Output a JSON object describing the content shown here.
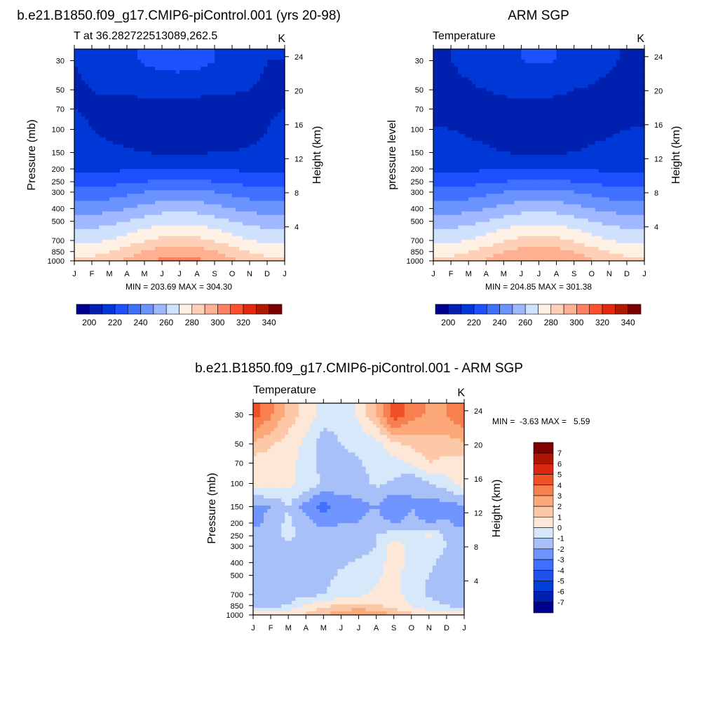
{
  "header": {
    "left_title": "b.e21.B1850.f09_g17.CMIP6-piControl.001 (yrs 20-98)",
    "right_title": "ARM SGP",
    "bottom_title": "b.e21.B1850.f09_g17.CMIP6-piControl.001 - ARM SGP"
  },
  "axes": {
    "months": [
      "J",
      "F",
      "M",
      "A",
      "M",
      "J",
      "J",
      "A",
      "S",
      "O",
      "N",
      "D",
      "J"
    ],
    "pressure_ticks": [
      "30",
      "50",
      "70",
      "100",
      "150",
      "200",
      "250",
      "300",
      "400",
      "500",
      "700",
      "850",
      "1000"
    ],
    "height_ticks": [
      "24",
      "20",
      "16",
      "12",
      "8",
      "4"
    ],
    "pressure_label": "Pressure (mb)",
    "pressure_label_alt": "pressure level",
    "height_label": "Height (km)"
  },
  "colors": {
    "temperature_scale": [
      "#00008f",
      "#0020b0",
      "#0038d8",
      "#1e50ff",
      "#4070ff",
      "#6b93ff",
      "#a0b8ff",
      "#d0e0ff",
      "#fff0e4",
      "#ffd0b8",
      "#ffb090",
      "#ff8060",
      "#ff5030",
      "#e02a10",
      "#b01800",
      "#800000"
    ],
    "diff_scale": [
      "#000090",
      "#0020b0",
      "#0040d8",
      "#2050f0",
      "#4070ff",
      "#7095ff",
      "#a8c0f8",
      "#d6e8fa",
      "#fde8d8",
      "#fcc8a8",
      "#fca878",
      "#f88050",
      "#f05028",
      "#d82810",
      "#b01404",
      "#800000"
    ]
  },
  "chart_data": [
    {
      "type": "heatmap",
      "title": "b.e21.B1850.f09_g17.CMIP6-piControl.001 (yrs 20-98)",
      "subtitle_left": "T at 36.282722513089,262.5",
      "subtitle_right": "K",
      "ylabel": "Pressure (mb)",
      "ylabel_right": "Height (km)",
      "stats": "MIN = 203.69 MAX = 304.30",
      "levels": [
        200,
        220,
        240,
        260,
        280,
        300,
        320,
        340
      ],
      "x": [
        "J",
        "F",
        "M",
        "A",
        "M",
        "J",
        "J",
        "A",
        "S",
        "O",
        "N",
        "D",
        "J"
      ],
      "y": [
        30,
        50,
        70,
        100,
        150,
        200,
        250,
        300,
        400,
        500,
        700,
        850,
        1000
      ],
      "values": [
        [
          210,
          212,
          214,
          218,
          221,
          223,
          224,
          223,
          220,
          216,
          212,
          210,
          210
        ],
        [
          209,
          210,
          211,
          212,
          213,
          214,
          214,
          213,
          212,
          211,
          210,
          209,
          209
        ],
        [
          210,
          209,
          208,
          206,
          205,
          205,
          205,
          205,
          205,
          206,
          208,
          209,
          210
        ],
        [
          212,
          210,
          208,
          206,
          205,
          204,
          204,
          204,
          205,
          206,
          207,
          210,
          212
        ],
        [
          214,
          213,
          212,
          211,
          210,
          209,
          209,
          209,
          210,
          210,
          211,
          212,
          214
        ],
        [
          218,
          218,
          218,
          219,
          220,
          221,
          221,
          221,
          220,
          219,
          218,
          218,
          218
        ],
        [
          226,
          226,
          227,
          228,
          230,
          232,
          233,
          232,
          230,
          228,
          227,
          226,
          226
        ],
        [
          234,
          234,
          235,
          237,
          240,
          242,
          243,
          242,
          240,
          237,
          235,
          234,
          234
        ],
        [
          245,
          245,
          247,
          250,
          253,
          256,
          257,
          256,
          253,
          250,
          247,
          245,
          245
        ],
        [
          254,
          255,
          257,
          260,
          264,
          267,
          268,
          267,
          264,
          260,
          257,
          255,
          254
        ],
        [
          267,
          268,
          270,
          274,
          279,
          283,
          284,
          283,
          279,
          274,
          270,
          268,
          267
        ],
        [
          276,
          277,
          280,
          285,
          291,
          295,
          297,
          295,
          291,
          285,
          280,
          277,
          276
        ],
        [
          282,
          283,
          286,
          292,
          298,
          302,
          304,
          302,
          298,
          292,
          286,
          283,
          282
        ]
      ]
    },
    {
      "type": "heatmap",
      "title": "ARM SGP",
      "subtitle_left": "Temperature",
      "subtitle_right": "K",
      "ylabel": "pressure level",
      "ylabel_right": "Height (km)",
      "stats": "MIN = 204.85 MAX = 301.38",
      "levels": [
        200,
        220,
        240,
        260,
        280,
        300,
        320,
        340
      ],
      "x": [
        "J",
        "F",
        "M",
        "A",
        "M",
        "J",
        "J",
        "A",
        "S",
        "O",
        "N",
        "D",
        "J"
      ],
      "y": [
        30,
        50,
        70,
        100,
        150,
        200,
        250,
        300,
        400,
        500,
        700,
        850,
        1000
      ],
      "values": [
        [
          209,
          210,
          212,
          215,
          218,
          220,
          221,
          220,
          218,
          214,
          211,
          209,
          209
        ],
        [
          207,
          208,
          209,
          210,
          211,
          212,
          212,
          211,
          210,
          209,
          208,
          207,
          206
        ],
        [
          205,
          206,
          207,
          208,
          208,
          208,
          208,
          208,
          208,
          207,
          206,
          206,
          205
        ],
        [
          211,
          210,
          209,
          208,
          207,
          206,
          206,
          206,
          207,
          208,
          209,
          210,
          211
        ],
        [
          214,
          213,
          212,
          211,
          210,
          209,
          209,
          209,
          210,
          211,
          212,
          213,
          214
        ],
        [
          218,
          218,
          218,
          219,
          220,
          221,
          221,
          221,
          220,
          219,
          218,
          218,
          218
        ],
        [
          226,
          226,
          227,
          228,
          230,
          232,
          233,
          232,
          230,
          228,
          227,
          226,
          226
        ],
        [
          234,
          234,
          235,
          237,
          240,
          242,
          243,
          242,
          240,
          237,
          235,
          234,
          234
        ],
        [
          245,
          245,
          247,
          250,
          253,
          256,
          257,
          256,
          253,
          250,
          247,
          245,
          245
        ],
        [
          254,
          255,
          257,
          260,
          264,
          267,
          268,
          267,
          264,
          260,
          257,
          255,
          254
        ],
        [
          267,
          268,
          270,
          274,
          279,
          283,
          284,
          283,
          279,
          274,
          270,
          268,
          267
        ],
        [
          276,
          277,
          280,
          285,
          290,
          294,
          296,
          294,
          290,
          285,
          280,
          277,
          276
        ],
        [
          281,
          282,
          285,
          291,
          296,
          299,
          301,
          299,
          296,
          291,
          285,
          282,
          281
        ]
      ]
    },
    {
      "type": "heatmap",
      "title": "b.e21.B1850.f09_g17.CMIP6-piControl.001 - ARM SGP",
      "subtitle_left": "Temperature",
      "subtitle_right": "K",
      "ylabel": "Pressure (mb)",
      "ylabel_right": "Height (km)",
      "stats": "MIN =  -3.63 MAX =   5.59",
      "levels": [
        -7,
        -6,
        -5,
        -4,
        -3,
        -2,
        -1,
        0,
        1,
        2,
        3,
        4,
        5,
        6,
        7
      ],
      "x": [
        "J",
        "F",
        "M",
        "A",
        "M",
        "J",
        "J",
        "A",
        "S",
        "O",
        "N",
        "D",
        "J"
      ],
      "y": [
        30,
        50,
        70,
        100,
        150,
        200,
        250,
        300,
        400,
        500,
        700,
        850,
        1000
      ],
      "values": [
        [
          4.5,
          3.2,
          1.6,
          0.6,
          -0.5,
          -0.5,
          0.2,
          2.0,
          4.8,
          3.5,
          2.8,
          3.0,
          4.0
        ],
        [
          1.8,
          1.2,
          0.5,
          -0.2,
          -1.6,
          -1.0,
          -0.8,
          -0.4,
          0.8,
          1.2,
          1.6,
          1.5,
          1.8
        ],
        [
          0.5,
          0.4,
          0.2,
          -0.3,
          -1.5,
          -1.2,
          -1.1,
          -0.6,
          -0.4,
          0.2,
          1.0,
          0.6,
          0.5
        ],
        [
          0.5,
          0.4,
          0.2,
          -0.2,
          -1.2,
          -1.5,
          -1.5,
          -0.8,
          -1.2,
          -2.0,
          -1.0,
          -0.4,
          0.5
        ],
        [
          -2.2,
          -2.0,
          -1.0,
          -2.5,
          -3.5,
          -2.5,
          -2.3,
          -2.0,
          -3.0,
          -2.0,
          -2.6,
          -2.5,
          -2.2
        ],
        [
          -2.6,
          -1.5,
          -0.8,
          -1.6,
          -2.4,
          -2.0,
          -2.0,
          -1.6,
          -2.0,
          -1.8,
          -2.0,
          -1.8,
          -2.6
        ],
        [
          -1.2,
          -1.5,
          -0.6,
          -1.4,
          -1.5,
          -1.6,
          -1.4,
          -1.0,
          -0.4,
          -0.6,
          0.2,
          -1.2,
          -1.2
        ],
        [
          -1.4,
          -1.6,
          -1.4,
          -1.4,
          -1.0,
          -1.8,
          -1.6,
          -1.0,
          0.6,
          -0.4,
          -0.3,
          -1.0,
          -1.4
        ],
        [
          -1.5,
          -1.5,
          -1.5,
          -1.5,
          -1.6,
          -1.2,
          -0.8,
          -0.5,
          0.5,
          -0.4,
          -0.8,
          -1.4,
          -1.5
        ],
        [
          -1.5,
          -1.6,
          -1.6,
          -1.5,
          -1.4,
          -0.8,
          -0.6,
          -0.2,
          0.4,
          -0.5,
          -1.0,
          -1.4,
          -1.5
        ],
        [
          -2.0,
          -1.6,
          -1.5,
          -1.3,
          -1.0,
          -0.5,
          -0.2,
          0.2,
          0.4,
          -0.4,
          -1.2,
          -1.6,
          -2.0
        ],
        [
          -1.5,
          -1.2,
          -1.0,
          0.2,
          0.8,
          1.2,
          1.4,
          1.2,
          0.6,
          0.0,
          -0.6,
          -1.0,
          -1.5
        ],
        [
          0.4,
          0.6,
          0.8,
          1.2,
          2.0,
          2.6,
          3.2,
          2.6,
          2.0,
          1.2,
          0.6,
          0.4,
          0.4
        ]
      ]
    }
  ]
}
